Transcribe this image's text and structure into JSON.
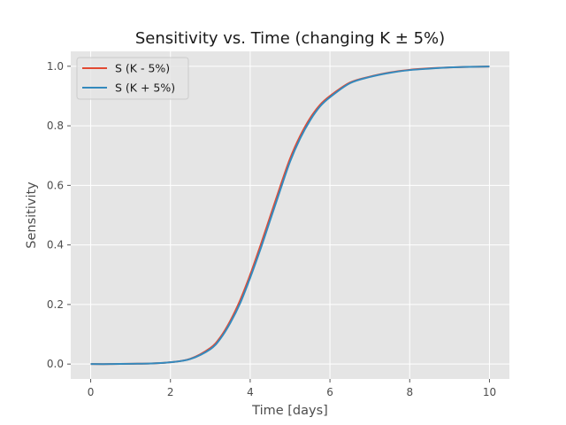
{
  "chart_data": {
    "type": "line",
    "title": "Sensitivity vs. Time (changing K ± 5%)",
    "xlabel": "Time [days]",
    "ylabel": "Sensitivity",
    "xlim": [
      -0.5,
      10.5
    ],
    "ylim": [
      -0.05,
      1.05
    ],
    "xticks": [
      0,
      2,
      4,
      6,
      8,
      10
    ],
    "yticks": [
      0.0,
      0.2,
      0.4,
      0.6,
      0.8,
      1.0
    ],
    "xtick_labels": [
      "0",
      "2",
      "4",
      "6",
      "8",
      "10"
    ],
    "ytick_labels": [
      "0.0",
      "0.2",
      "0.4",
      "0.6",
      "0.8",
      "1.0"
    ],
    "grid": true,
    "legend": "top-left",
    "background": "#e5e5e5",
    "x": [
      0,
      0.5,
      1,
      1.5,
      2,
      2.5,
      3,
      3.25,
      3.5,
      3.75,
      4,
      4.25,
      4.5,
      4.75,
      5,
      5.25,
      5.5,
      5.75,
      6,
      6.5,
      7,
      7.5,
      8,
      8.5,
      9,
      9.5,
      10
    ],
    "series": [
      {
        "name": "S (K - 5%)",
        "color": "#e24a33",
        "values": [
          0.0,
          0.0,
          0.001,
          0.002,
          0.006,
          0.018,
          0.054,
          0.09,
          0.145,
          0.215,
          0.3,
          0.395,
          0.495,
          0.595,
          0.69,
          0.765,
          0.825,
          0.87,
          0.9,
          0.945,
          0.965,
          0.979,
          0.988,
          0.993,
          0.996,
          0.998,
          0.999
        ]
      },
      {
        "name": "S (K + 5%)",
        "color": "#348abd",
        "values": [
          0.0,
          0.0,
          0.001,
          0.002,
          0.006,
          0.017,
          0.05,
          0.085,
          0.138,
          0.205,
          0.29,
          0.383,
          0.483,
          0.583,
          0.68,
          0.757,
          0.818,
          0.865,
          0.896,
          0.943,
          0.964,
          0.978,
          0.987,
          0.992,
          0.996,
          0.998,
          0.999
        ]
      }
    ]
  }
}
